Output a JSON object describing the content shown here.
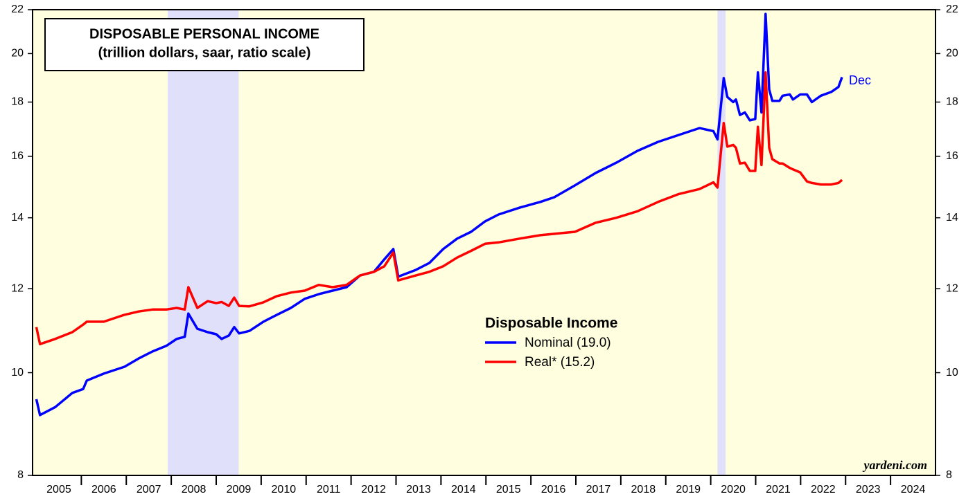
{
  "chart_data": {
    "type": "line",
    "title": "DISPOSABLE PERSONAL INCOME",
    "subtitle": "(trillion dollars, saar, ratio scale)",
    "legend_title": "Disposable Income",
    "annotation": "Dec",
    "source": "yardeni.com",
    "log_scale": true,
    "ylim": [
      8,
      22
    ],
    "yticks": [
      8,
      10,
      12,
      14,
      16,
      18,
      20,
      22
    ],
    "xlim": [
      2005,
      2025
    ],
    "year_labels": [
      "2005",
      "2006",
      "2007",
      "2008",
      "2009",
      "2010",
      "2011",
      "2012",
      "2013",
      "2014",
      "2015",
      "2016",
      "2017",
      "2018",
      "2019",
      "2020",
      "2021",
      "2022",
      "2023",
      "2024"
    ],
    "recessions": [
      [
        2007.92,
        2009.5
      ],
      [
        2020.15,
        2020.33
      ]
    ],
    "x": [
      2005.0,
      2005.08,
      2005.42,
      2005.8,
      2006.04,
      2006.12,
      2006.5,
      2006.96,
      2007.27,
      2007.58,
      2007.89,
      2008.12,
      2008.3,
      2008.38,
      2008.58,
      2008.81,
      2009.0,
      2009.12,
      2009.28,
      2009.4,
      2009.51,
      2009.74,
      2010.05,
      2010.35,
      2010.66,
      2010.97,
      2011.28,
      2011.59,
      2011.9,
      2012.2,
      2012.51,
      2012.74,
      2012.94,
      2013.05,
      2013.44,
      2013.74,
      2014.05,
      2014.36,
      2014.67,
      2014.98,
      2015.28,
      2015.75,
      2016.21,
      2016.52,
      2016.98,
      2017.44,
      2017.9,
      2018.37,
      2018.83,
      2019.29,
      2019.75,
      2020.06,
      2020.15,
      2020.29,
      2020.37,
      2020.5,
      2020.56,
      2020.65,
      2020.76,
      2020.87,
      2020.99,
      2021.05,
      2021.13,
      2021.22,
      2021.3,
      2021.37,
      2021.53,
      2021.6,
      2021.76,
      2021.83,
      2021.99,
      2022.14,
      2022.25,
      2022.45,
      2022.68,
      2022.84,
      2022.92
    ],
    "series": [
      {
        "name": "Nominal (19.0)",
        "color": "#0000ff",
        "values": [
          9.44,
          9.12,
          9.28,
          9.57,
          9.65,
          9.83,
          9.98,
          10.13,
          10.31,
          10.47,
          10.6,
          10.76,
          10.81,
          11.37,
          11.0,
          10.92,
          10.87,
          10.76,
          10.84,
          11.04,
          10.89,
          10.95,
          11.17,
          11.34,
          11.51,
          11.74,
          11.86,
          11.95,
          12.04,
          12.35,
          12.45,
          12.79,
          13.08,
          12.32,
          12.5,
          12.69,
          13.08,
          13.38,
          13.58,
          13.89,
          14.1,
          14.31,
          14.49,
          14.64,
          15.02,
          15.43,
          15.78,
          16.19,
          16.51,
          16.76,
          17.01,
          16.9,
          16.6,
          18.96,
          18.2,
          18.0,
          18.1,
          17.5,
          17.6,
          17.3,
          17.35,
          19.2,
          17.6,
          21.8,
          18.5,
          18.05,
          18.05,
          18.25,
          18.3,
          18.1,
          18.3,
          18.3,
          18.0,
          18.25,
          18.4,
          18.6,
          19.0
        ]
      },
      {
        "name": "Real* (15.2)",
        "color": "#ff0000",
        "values": [
          11.04,
          10.64,
          10.76,
          10.92,
          11.1,
          11.17,
          11.17,
          11.34,
          11.42,
          11.47,
          11.47,
          11.51,
          11.47,
          12.04,
          11.51,
          11.68,
          11.63,
          11.66,
          11.56,
          11.77,
          11.56,
          11.55,
          11.65,
          11.81,
          11.9,
          11.95,
          12.1,
          12.04,
          12.1,
          12.35,
          12.45,
          12.6,
          12.98,
          12.22,
          12.35,
          12.45,
          12.6,
          12.84,
          13.03,
          13.23,
          13.27,
          13.38,
          13.48,
          13.52,
          13.58,
          13.85,
          14.0,
          14.2,
          14.49,
          14.74,
          14.9,
          15.12,
          14.95,
          17.2,
          16.34,
          16.4,
          16.3,
          15.75,
          15.78,
          15.5,
          15.5,
          17.06,
          15.7,
          19.2,
          16.3,
          15.9,
          15.75,
          15.75,
          15.6,
          15.55,
          15.45,
          15.15,
          15.1,
          15.05,
          15.05,
          15.1,
          15.2
        ]
      }
    ]
  }
}
